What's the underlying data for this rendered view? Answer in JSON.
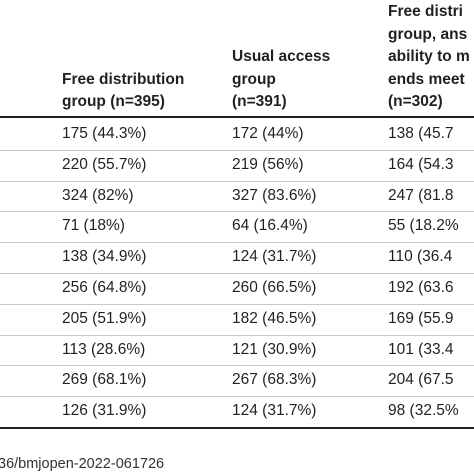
{
  "table": {
    "header": [
      [
        "Free distribution",
        "group (n=395)"
      ],
      [
        "Usual access",
        "group",
        "(n=391)"
      ],
      [
        "Free distri",
        "group, ans",
        "ability to m",
        "ends meet",
        "(n=302)"
      ]
    ],
    "rows": [
      [
        "175 (44.3%)",
        "172 (44%)",
        "138 (45.7"
      ],
      [
        "220 (55.7%)",
        "219 (56%)",
        "164 (54.3"
      ],
      [
        "324 (82%)",
        "327 (83.6%)",
        "247 (81.8"
      ],
      [
        "71 (18%)",
        "64 (16.4%)",
        "55 (18.2%"
      ],
      [
        "138 (34.9%)",
        "124 (31.7%)",
        "110 (36.4"
      ],
      [
        "256 (64.8%)",
        "260 (66.5%)",
        "192 (63.6"
      ],
      [
        "205 (51.9%)",
        "182 (46.5%)",
        "169 (55.9"
      ],
      [
        "113 (28.6%)",
        "121 (30.9%)",
        "101 (33.4"
      ],
      [
        "269 (68.1%)",
        "267 (68.3%)",
        "204 (67.5"
      ],
      [
        "126 (31.9%)",
        "124 (31.7%)",
        "98 (32.5%"
      ]
    ]
  },
  "footer": "36/bmjopen-2022-061726"
}
